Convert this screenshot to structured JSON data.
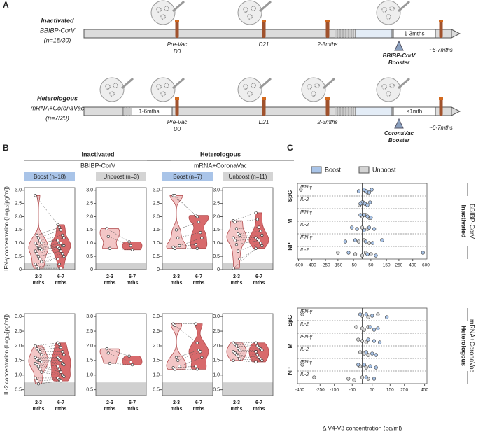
{
  "panel_a": {
    "label": "A",
    "rows": [
      {
        "title": "Inactivated",
        "vaccine": "BBIBP-CorV",
        "n": "(n=18/30)",
        "events": [
          [
            "Pre-Vac",
            "D0"
          ],
          [
            "D21"
          ],
          [
            "2-3mths"
          ],
          [
            "~6-7mths"
          ]
        ],
        "interval": "1-3mths",
        "booster": [
          "BBIBP-CorV",
          "Booster"
        ]
      },
      {
        "title": "Heterologous",
        "vaccine": "mRNA+CoronaVac",
        "n": "(n=7/20)",
        "lead": "1-6mths",
        "events": [
          [
            "Pre-Vac",
            "D0"
          ],
          [
            "D21"
          ],
          [
            "2-3mths"
          ],
          [
            "~6-7mths"
          ]
        ],
        "interval": "<1mth",
        "booster": [
          "CoronaVac",
          "Booster"
        ]
      }
    ]
  },
  "panel_b": {
    "label": "B",
    "groups": [
      {
        "title": "Inactivated",
        "vaccine": "BBIBP-CorV"
      },
      {
        "title": "Heterologous",
        "vaccine": "mRNA+CoronaVac"
      }
    ],
    "subgroups": [
      "Boost (n=18)",
      "Unboost (n=3)",
      "Boost (n=7)",
      "Unboost (n=11)"
    ],
    "subgroup_colors": [
      "#a9c4e8",
      "#d4d4d4",
      "#a9c4e8",
      "#d4d4d4"
    ],
    "categories": [
      [
        "2-3",
        "mths"
      ],
      [
        "6-7",
        "mths"
      ]
    ],
    "colors": [
      "#f3c6c6",
      "#d86a6c"
    ]
  },
  "chart_data": [
    {
      "type": "violin",
      "ylabel": "IFN-γ concentration (Log₁₀[pg/ml])",
      "ylim": [
        0,
        3.1
      ],
      "yticks": [
        0,
        0.5,
        {
          "value": 1,
          "label": "1.0"
        },
        1.5,
        {
          "value": 2,
          "label": "2.0"
        },
        2.5,
        {
          "value": 3,
          "label": "3.0"
        }
      ],
      "lod": 0.25,
      "values": [
        [
          [
            2.8,
            1.3,
            1.2,
            1.1,
            1.0,
            1.0,
            0.9,
            0.8,
            0.8,
            0.75,
            0.7,
            0.6,
            0.5,
            0.4,
            0.3,
            0.2,
            0.1,
            0.05
          ],
          [
            1.7,
            1.6,
            1.5,
            1.3,
            1.2,
            1.1,
            1.0,
            1.0,
            0.9,
            0.9,
            0.85,
            0.8,
            0.7,
            0.6,
            0.5,
            0.4,
            0.2,
            0.05
          ]
        ],
        [
          [
            1.55,
            1.25,
            0.8
          ],
          [
            1.05,
            0.9,
            0.75
          ]
        ],
        [
          [
            2.8,
            2.8,
            1.5,
            1.2,
            0.9,
            0.85,
            0.8
          ],
          [
            2.05,
            2.0,
            1.8,
            1.4,
            1.2,
            0.95,
            0.8
          ]
        ],
        [
          [
            1.85,
            1.8,
            1.55,
            1.35,
            1.3,
            1.2,
            1.1,
            0.95,
            0.7,
            0.4,
            0.05
          ],
          [
            2.15,
            1.9,
            1.6,
            1.45,
            1.3,
            1.2,
            1.15,
            1.1,
            1.0,
            0.9,
            0.8
          ]
        ]
      ]
    },
    {
      "type": "violin",
      "ylabel": "IL-2 concentration (Log₁₀[pg/ml])",
      "ylim": [
        0.3,
        3.1
      ],
      "yticks": [
        0.5,
        {
          "value": 1,
          "label": "1.0"
        },
        1.5,
        {
          "value": 2,
          "label": "2.0"
        },
        2.5,
        {
          "value": 3,
          "label": "3.0"
        }
      ],
      "lod": 0.75,
      "values": [
        [
          [
            2.0,
            1.9,
            1.85,
            1.8,
            1.7,
            1.6,
            1.55,
            1.5,
            1.5,
            1.45,
            1.4,
            1.35,
            1.3,
            1.2,
            1.1,
            0.9,
            0.8,
            0.7
          ],
          [
            2.1,
            2.05,
            1.95,
            1.8,
            1.7,
            1.6,
            1.55,
            1.5,
            1.4,
            1.35,
            1.3,
            1.2,
            1.1,
            1.0,
            0.95,
            0.9,
            0.85,
            0.8
          ]
        ],
        [
          [
            1.9,
            1.75,
            1.4
          ],
          [
            1.65,
            1.45,
            1.35
          ]
        ],
        [
          [
            2.75,
            2.7,
            1.6,
            1.5,
            1.3,
            1.25,
            1.2
          ],
          [
            2.75,
            2.1,
            1.85,
            1.8,
            1.6,
            1.3,
            1.2
          ]
        ],
        [
          [
            2.1,
            2.05,
            2.0,
            1.9,
            1.85,
            1.8,
            1.75,
            1.7,
            1.65,
            1.55,
            1.5
          ],
          [
            2.1,
            2.0,
            1.95,
            1.9,
            1.85,
            1.8,
            1.7,
            1.6,
            1.55,
            1.5,
            1.45
          ]
        ]
      ]
    },
    {
      "type": "strip",
      "group": "Inactivated",
      "vaccine": "BBIBP-CorV",
      "xscale": "asinh",
      "xlim": [
        -620,
        620
      ],
      "xticks": [
        -600,
        -400,
        -250,
        -150,
        -50,
        50,
        150,
        250,
        400,
        600
      ],
      "boost": [
        [
          10,
          25,
          40,
          55,
          -20
        ],
        [
          0,
          15,
          30,
          45,
          -10
        ],
        [
          10,
          30,
          50,
          -10
        ],
        [
          -60,
          -30,
          10,
          40,
          70
        ],
        [
          -40,
          20,
          60,
          120,
          -100
        ],
        [
          -80,
          30,
          80,
          550
        ]
      ],
      "unboost": [
        [
          -560,
          20,
          30
        ],
        [
          5,
          20,
          -15
        ],
        [
          20,
          0,
          40
        ],
        [
          0,
          30
        ],
        [
          10,
          -20,
          40
        ],
        [
          -150,
          -40,
          0,
          20,
          50
        ]
      ]
    },
    {
      "type": "strip",
      "group": "Heterologous",
      "vaccine": "mRNA+CoronaVac",
      "xscale": "asinh",
      "xlim": [
        -480,
        480
      ],
      "xticks": [
        -450,
        -250,
        -150,
        -50,
        50,
        150,
        250,
        450
      ],
      "boost": [
        [
          20,
          50,
          130,
          -10
        ],
        [
          40,
          80,
          60
        ],
        [
          30,
          60,
          90
        ],
        [
          20,
          50,
          70
        ],
        [
          10,
          40,
          70,
          -20
        ],
        [
          20,
          60
        ]
      ],
      "unboost": [
        [
          -420,
          0,
          30,
          80
        ],
        [
          -30,
          0,
          10,
          30
        ],
        [
          -20,
          0,
          20
        ],
        [
          -10,
          10,
          30
        ],
        [
          -420,
          -10,
          20
        ],
        [
          -300,
          -70,
          -40,
          0,
          30
        ]
      ]
    }
  ],
  "panel_c": {
    "label": "C",
    "legend": [
      "Boost",
      "Unboost"
    ],
    "colors": [
      "#a9c4e8",
      "#d4d4d4"
    ],
    "antigens": [
      "SpG",
      "M",
      "NP"
    ],
    "cytokines": [
      "IFN-γ",
      "IL-2"
    ],
    "xlabel": "Δ V4-V3 concentration (pg/ml)"
  }
}
